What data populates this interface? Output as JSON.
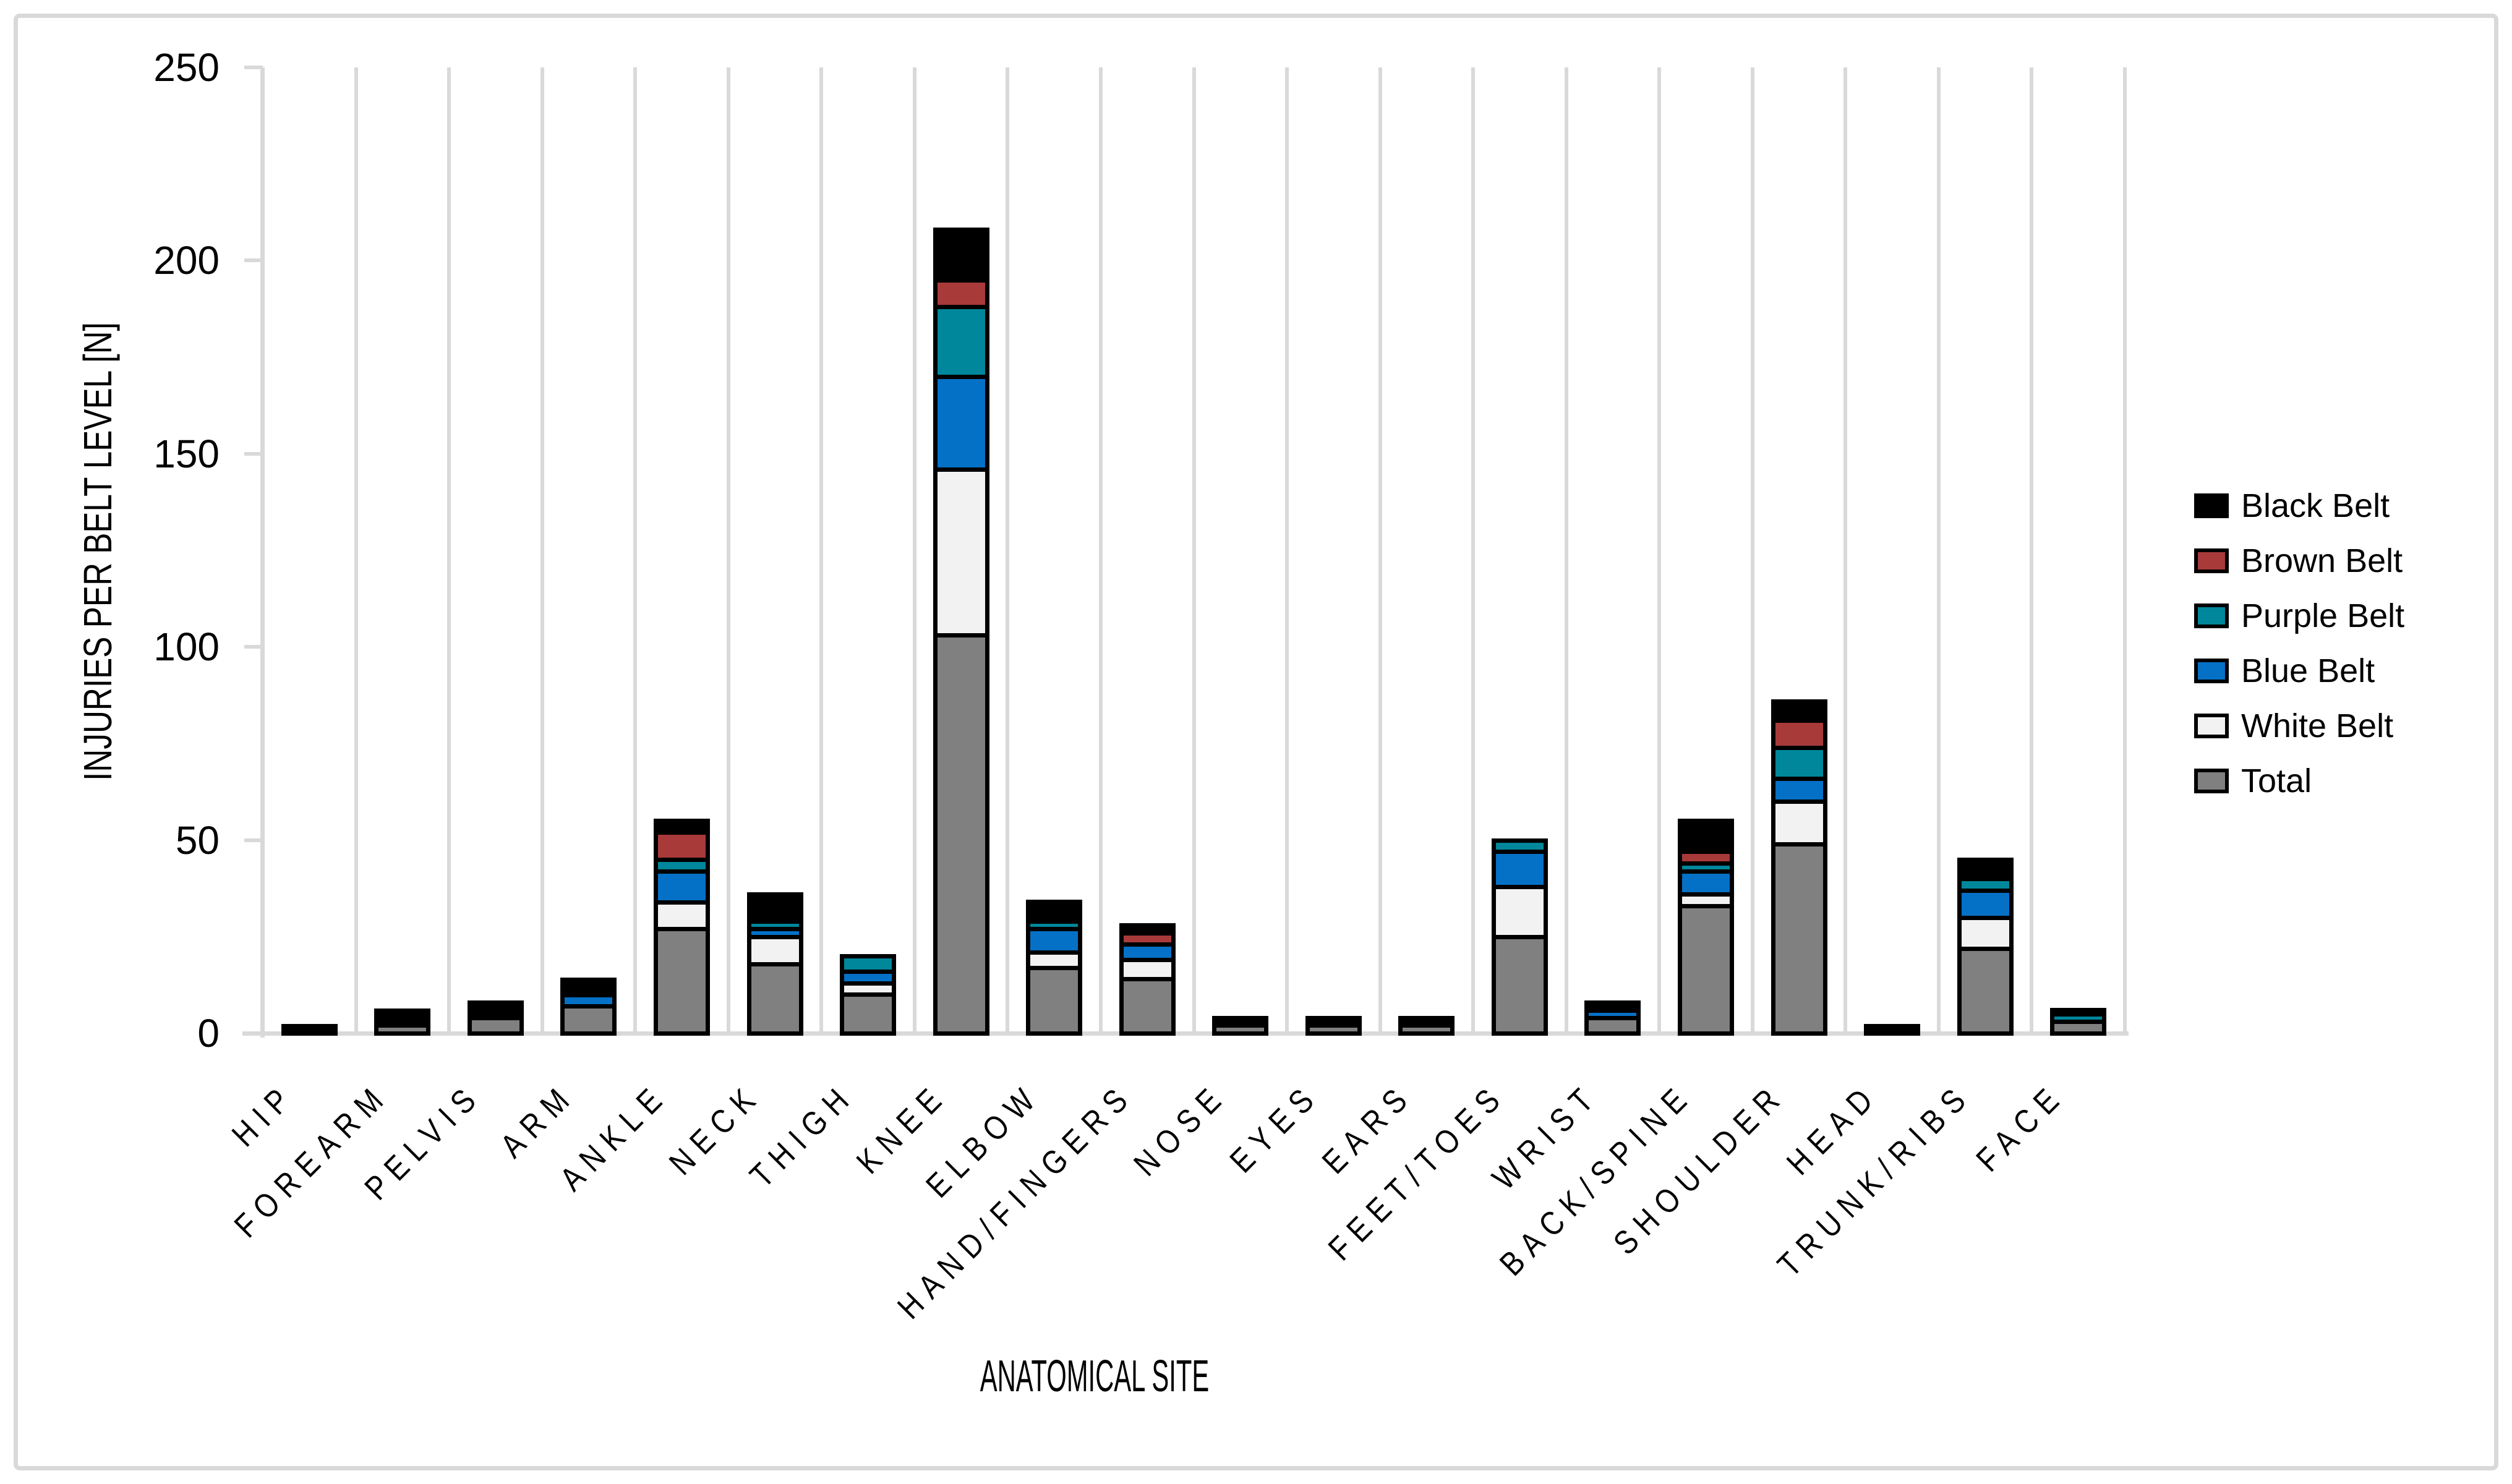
{
  "chart_data": {
    "type": "bar",
    "stacked": true,
    "title": "",
    "xlabel": "ANATOMICAL SITE",
    "ylabel": "INJURIES PER BELT LEVEL [N]",
    "ylim": [
      0,
      250
    ],
    "yticks": [
      0,
      50,
      100,
      150,
      200,
      250
    ],
    "grid": "vertical-only",
    "legend_position": "right",
    "axis_color": "#D9D9D9",
    "bar_outline_color": "#000000",
    "categories": [
      "HIP",
      "FOREARM",
      "PELVIS",
      "ARM",
      "ANKLE",
      "NECK",
      "THIGH",
      "KNEE",
      "ELBOW",
      "HAND/FINGERS",
      "NOSE",
      "EYES",
      "EARS",
      "FEET/TOES",
      "WRIST",
      "BACK/SPINE",
      "SHOULDER",
      "HEAD",
      "TRUNK/RIBS",
      "FACE"
    ],
    "series": [
      {
        "name": "Total",
        "color": "#808080",
        "values": [
          0,
          2,
          4,
          7,
          27,
          18,
          10,
          103,
          17,
          14,
          2,
          2,
          2,
          25,
          4,
          33,
          49,
          0,
          22,
          3
        ]
      },
      {
        "name": "White Belt",
        "color": "#F2F2F2",
        "values": [
          0,
          0,
          0,
          0,
          7,
          7,
          3,
          43,
          4,
          5,
          0,
          0,
          0,
          13,
          0,
          3,
          11,
          0,
          8,
          0
        ]
      },
      {
        "name": "Blue Belt",
        "color": "#0571C6",
        "values": [
          0,
          0,
          0,
          3,
          8,
          2,
          3,
          24,
          6,
          4,
          0,
          0,
          0,
          9,
          2,
          6,
          6,
          0,
          7,
          0
        ]
      },
      {
        "name": "Purple Belt",
        "color": "#00879B",
        "values": [
          0,
          0,
          0,
          0,
          3,
          2,
          4,
          18,
          2,
          0,
          0,
          0,
          0,
          3,
          0,
          2,
          8,
          0,
          3,
          2
        ]
      },
      {
        "name": "Brown Belt",
        "color": "#A93A3A",
        "values": [
          0,
          0,
          0,
          0,
          7,
          0,
          0,
          7,
          1,
          3,
          0,
          0,
          0,
          0,
          0,
          3,
          7,
          0,
          0,
          0
        ]
      },
      {
        "name": "Black Belt",
        "color": "#000000",
        "values": [
          2,
          4,
          4,
          4,
          3,
          7,
          0,
          13,
          4,
          2,
          2,
          2,
          2,
          0,
          2,
          8,
          5,
          2,
          5,
          1
        ]
      }
    ],
    "legend_order": [
      "Black Belt",
      "Brown Belt",
      "Purple Belt",
      "Blue Belt",
      "White Belt",
      "Total"
    ]
  }
}
